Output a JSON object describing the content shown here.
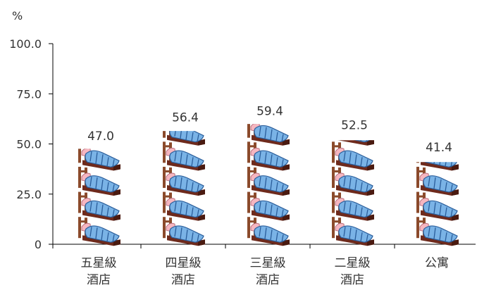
{
  "chart_data": {
    "type": "bar",
    "unit": "%",
    "categories": [
      [
        "五星級",
        "酒店"
      ],
      [
        "四星級",
        "酒店"
      ],
      [
        "三星級",
        "酒店"
      ],
      [
        "二星級",
        "酒店"
      ],
      [
        "公寓"
      ]
    ],
    "values": [
      47.0,
      56.4,
      59.4,
      52.5,
      41.4
    ],
    "value_labels": [
      "47.0",
      "56.4",
      "59.4",
      "52.5",
      "41.4"
    ],
    "ylim": [
      0,
      100
    ],
    "yticks": [
      0,
      25,
      50,
      75,
      100
    ],
    "ytick_labels": [
      "0",
      "25.0",
      "50.0",
      "75.0",
      "100.0"
    ],
    "grid": false,
    "bar_style": "pictograph bed icons",
    "icon": "bed-icon",
    "icon_unit": 12.5,
    "colors": {
      "axis": "#000000",
      "text": "#333333",
      "blanket": "#7ab3e6",
      "blanket_stripe": "#2a5d9a",
      "pillow": "#f6b6c0",
      "frame": "#8b4a2b",
      "mattress": "#6e2a1c"
    }
  }
}
